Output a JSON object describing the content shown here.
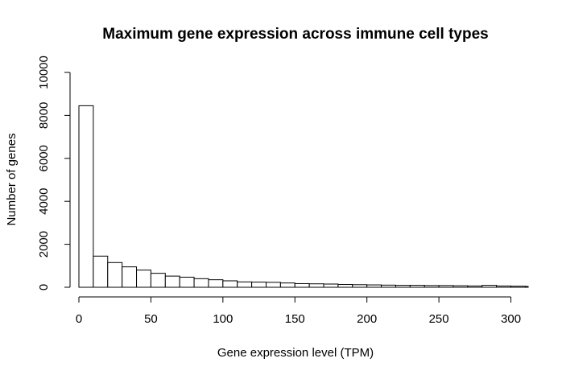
{
  "chart_data": {
    "type": "bar",
    "title": "Maximum gene expression across immune cell types",
    "xlabel": "Gene expression level (TPM)",
    "ylabel": "Number of genes",
    "bin_width": 10,
    "bin_starts": [
      0,
      10,
      20,
      30,
      40,
      50,
      60,
      70,
      80,
      90,
      100,
      110,
      120,
      130,
      140,
      150,
      160,
      170,
      180,
      190,
      200,
      210,
      220,
      230,
      240,
      250,
      260,
      270,
      280,
      290,
      300,
      310
    ],
    "values": [
      8450,
      1450,
      1150,
      950,
      800,
      650,
      520,
      470,
      400,
      350,
      300,
      250,
      240,
      230,
      200,
      170,
      160,
      150,
      130,
      120,
      110,
      100,
      90,
      90,
      80,
      80,
      70,
      60,
      90,
      60,
      50,
      40
    ],
    "xlim": [
      0,
      312
    ],
    "ylim": [
      0,
      10000
    ],
    "xticks": [
      0,
      50,
      100,
      150,
      200,
      250,
      300
    ],
    "yticks": [
      0,
      2000,
      4000,
      6000,
      8000,
      10000
    ],
    "grid": false,
    "legend": "none"
  }
}
